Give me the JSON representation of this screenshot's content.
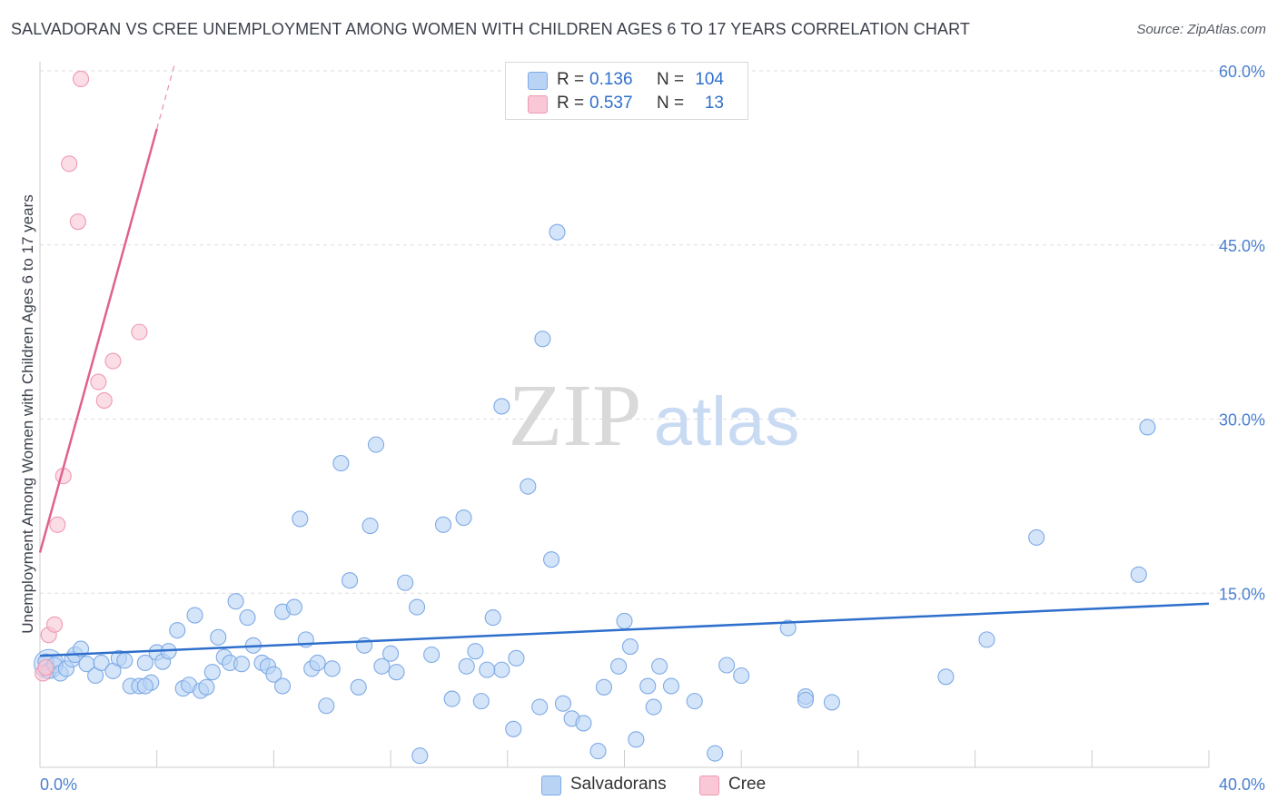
{
  "title": "SALVADORAN VS CREE UNEMPLOYMENT AMONG WOMEN WITH CHILDREN AGES 6 TO 17 YEARS CORRELATION CHART",
  "source": "Source: ZipAtlas.com",
  "watermark": {
    "zip": "ZIP",
    "atlas": "atlas"
  },
  "colors": {
    "salvadoran_fill": "#b9d3f5",
    "salvadoran_stroke": "#7eaae6",
    "salvadoran_line": "#2f6fcc",
    "cree_fill": "#f9c7d5",
    "cree_stroke": "#ee9ab2",
    "cree_line": "#e0628c",
    "grid": "#dddddd",
    "tick_text": "#4a7fd0"
  },
  "legend": {
    "rows": [
      {
        "r_label": "R =",
        "r_value": "0.136",
        "n_label": "N =",
        "n_value": "104"
      },
      {
        "r_label": "R =",
        "r_value": "0.537",
        "n_label": "N =",
        "n_value": "13"
      }
    ]
  },
  "bottom_legend": {
    "salvadorans": "Salvadorans",
    "cree": "Cree"
  },
  "chart_data": {
    "type": "scatter",
    "title": "SALVADORAN VS CREE UNEMPLOYMENT AMONG WOMEN WITH CHILDREN AGES 6 TO 17 YEARS CORRELATION CHART",
    "xlabel": "",
    "ylabel": "Unemployment Among Women with Children Ages 6 to 17 years",
    "xlim": [
      0,
      40
    ],
    "ylim": [
      0,
      60
    ],
    "x_tick_labels": [
      "0.0%",
      "40.0%"
    ],
    "y_ticks": [
      15,
      30,
      45,
      60
    ],
    "y_tick_labels": [
      "15.0%",
      "30.0%",
      "45.0%",
      "60.0%"
    ],
    "grid": true,
    "legend_position": "top-center",
    "series": [
      {
        "name": "Salvadorans",
        "r": 0.136,
        "n": 104,
        "trend": {
          "x0": 0,
          "y0": 9.6,
          "x1": 40,
          "y1": 14.1
        },
        "points": [
          [
            0.2,
            9.1
          ],
          [
            0.3,
            8.3
          ],
          [
            0.5,
            8.8
          ],
          [
            0.7,
            8.1
          ],
          [
            0.9,
            8.5
          ],
          [
            1.1,
            9.3
          ],
          [
            1.2,
            9.7
          ],
          [
            1.4,
            10.2
          ],
          [
            1.6,
            8.9
          ],
          [
            1.9,
            7.9
          ],
          [
            2.1,
            9.0
          ],
          [
            2.5,
            8.3
          ],
          [
            2.7,
            9.4
          ],
          [
            2.9,
            9.2
          ],
          [
            3.1,
            7.0
          ],
          [
            3.4,
            7.0
          ],
          [
            3.6,
            9.0
          ],
          [
            3.8,
            7.3
          ],
          [
            4.0,
            9.9
          ],
          [
            4.2,
            9.1
          ],
          [
            4.4,
            10.0
          ],
          [
            4.7,
            11.8
          ],
          [
            4.9,
            6.8
          ],
          [
            5.1,
            7.1
          ],
          [
            5.3,
            13.1
          ],
          [
            5.5,
            6.6
          ],
          [
            5.7,
            6.9
          ],
          [
            5.9,
            8.2
          ],
          [
            6.1,
            11.2
          ],
          [
            6.3,
            9.5
          ],
          [
            6.5,
            9.0
          ],
          [
            6.7,
            14.3
          ],
          [
            6.9,
            8.9
          ],
          [
            7.1,
            12.9
          ],
          [
            7.3,
            10.5
          ],
          [
            7.6,
            9.0
          ],
          [
            7.8,
            8.7
          ],
          [
            8.0,
            8.0
          ],
          [
            8.3,
            7.0
          ],
          [
            8.3,
            13.4
          ],
          [
            8.7,
            13.8
          ],
          [
            8.9,
            21.4
          ],
          [
            9.1,
            11.0
          ],
          [
            9.3,
            8.5
          ],
          [
            9.5,
            9.0
          ],
          [
            9.8,
            5.3
          ],
          [
            10.0,
            8.5
          ],
          [
            10.3,
            26.2
          ],
          [
            10.6,
            16.1
          ],
          [
            10.9,
            6.9
          ],
          [
            11.1,
            10.5
          ],
          [
            11.3,
            20.8
          ],
          [
            11.5,
            27.8
          ],
          [
            11.7,
            8.7
          ],
          [
            12.0,
            9.8
          ],
          [
            12.2,
            8.2
          ],
          [
            12.5,
            15.9
          ],
          [
            12.9,
            13.8
          ],
          [
            13.0,
            1.0
          ],
          [
            13.4,
            9.7
          ],
          [
            13.8,
            20.9
          ],
          [
            14.1,
            5.9
          ],
          [
            14.5,
            21.5
          ],
          [
            14.6,
            8.7
          ],
          [
            14.9,
            10.0
          ],
          [
            15.1,
            5.7
          ],
          [
            15.5,
            12.9
          ],
          [
            15.8,
            8.4
          ],
          [
            15.8,
            31.1
          ],
          [
            16.2,
            3.3
          ],
          [
            16.3,
            9.4
          ],
          [
            16.7,
            24.2
          ],
          [
            17.1,
            5.2
          ],
          [
            17.2,
            36.9
          ],
          [
            17.5,
            17.9
          ],
          [
            17.7,
            46.1
          ],
          [
            17.9,
            5.5
          ],
          [
            18.2,
            4.2
          ],
          [
            18.6,
            3.8
          ],
          [
            19.1,
            1.4
          ],
          [
            19.3,
            6.9
          ],
          [
            19.8,
            8.7
          ],
          [
            20.0,
            12.6
          ],
          [
            20.2,
            10.4
          ],
          [
            20.4,
            2.4
          ],
          [
            20.8,
            7.0
          ],
          [
            21.0,
            5.2
          ],
          [
            21.2,
            8.7
          ],
          [
            21.6,
            7.0
          ],
          [
            22.4,
            5.7
          ],
          [
            23.1,
            1.2
          ],
          [
            23.5,
            8.8
          ],
          [
            24.0,
            7.9
          ],
          [
            25.6,
            12.0
          ],
          [
            26.2,
            6.1
          ],
          [
            26.2,
            5.8
          ],
          [
            27.1,
            5.6
          ],
          [
            31.0,
            7.8
          ],
          [
            32.4,
            11.0
          ],
          [
            34.1,
            19.8
          ],
          [
            37.6,
            16.6
          ],
          [
            37.9,
            29.3
          ],
          [
            3.6,
            7.0
          ],
          [
            15.3,
            8.4
          ]
        ]
      },
      {
        "name": "Cree",
        "r": 0.537,
        "n": 13,
        "trend": {
          "x0": 0,
          "y0": 18.5,
          "x1": 4.0,
          "y1": 55.0
        },
        "trend_dashed_to": {
          "x": 4.6,
          "y": 60.5
        },
        "points": [
          [
            0.1,
            8.1
          ],
          [
            0.3,
            11.4
          ],
          [
            0.5,
            12.3
          ],
          [
            0.6,
            20.9
          ],
          [
            0.8,
            25.1
          ],
          [
            1.0,
            52.0
          ],
          [
            1.3,
            47.0
          ],
          [
            1.4,
            59.3
          ],
          [
            2.0,
            33.2
          ],
          [
            2.2,
            31.6
          ],
          [
            2.5,
            35.0
          ],
          [
            3.4,
            37.5
          ],
          [
            0.2,
            8.6
          ]
        ]
      }
    ]
  }
}
